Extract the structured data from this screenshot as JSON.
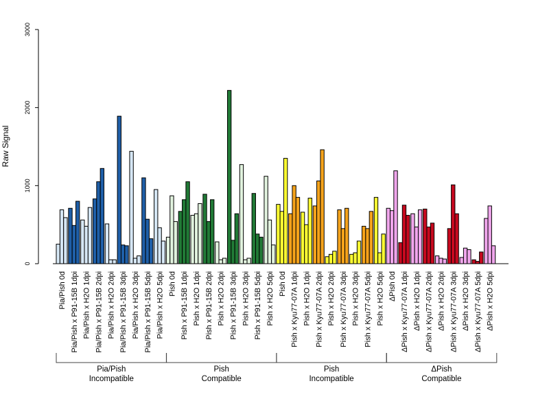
{
  "chart_data": {
    "type": "bar",
    "title": "",
    "ylabel": "Raw Signal",
    "xlabel": "",
    "ylim": [
      0,
      3000
    ],
    "yticks": [
      0,
      1000,
      2000,
      3000
    ],
    "categories": [
      "Pia/Pish 0d",
      "Pia/Pish x P91-15B 1dpi",
      "Pia/Pish x H2O 1dpi",
      "Pia/Pish x P91-15B 2dpi",
      "Pia/Pish x H2O 2dpi",
      "Pia/Pish x P91-15B 3dpi",
      "Pia/Pish x H2O 3dpi",
      "Pia/Pish x P91-15B 5dpi",
      "Pia/Pish x H2O 5dpi",
      "Pish 0d",
      "Pish x P91-15B 1dpi",
      "Pish x H2O 1dpi",
      "Pish x P91-15B 2dpi",
      "Pish x H2O 2dpi",
      "Pish x P91-15B 3dpi",
      "Pish x H2O 3dpi",
      "Pish x P91-15B 5dpi",
      "Pish x H2O 5dpi",
      "Pish 0d",
      "Pish x Kyu77-07A 1dpi",
      "Pish x H2O 1dpi",
      "Pish x Kyu77-07A 2dpi",
      "Pish x H2O 2dpi",
      "Pish x Kyu77-07A 3dpi",
      "Pish x H2O 3dpi",
      "Pish x Kyu77-07A 5dpi",
      "Pish x H2O 5dpi",
      "ΔPish 0d",
      "ΔPish x Kyu77-07A 1dpi",
      "ΔPish x H2O 1dpi",
      "ΔPish x Kyu77-07A 2dpi",
      "ΔPish x H2O 2dpi",
      "ΔPish x Kyu77-07A 3dpi",
      "ΔPish x H2O 3dpi",
      "ΔPish x Kyu77-07A 5dpi",
      "ΔPish x H2O 5dpi"
    ],
    "values": [
      [
        250,
        690,
        590
      ],
      [
        710,
        490,
        800
      ],
      [
        560,
        480,
        720
      ],
      [
        830,
        1050,
        1220
      ],
      [
        510,
        50,
        50
      ],
      [
        1890,
        240,
        230
      ],
      [
        1440,
        70,
        100
      ],
      [
        1100,
        570,
        320
      ],
      [
        950,
        460,
        290
      ],
      [
        340,
        870,
        540
      ],
      [
        670,
        820,
        1050
      ],
      [
        620,
        640,
        770
      ],
      [
        890,
        540,
        820
      ],
      [
        280,
        50,
        70
      ],
      [
        2220,
        300,
        640
      ],
      [
        1270,
        50,
        70
      ],
      [
        900,
        380,
        340
      ],
      [
        1120,
        560,
        240
      ],
      [
        760,
        670,
        1350
      ],
      [
        640,
        1000,
        850
      ],
      [
        660,
        500,
        840
      ],
      [
        740,
        1060,
        1460
      ],
      [
        90,
        120,
        160
      ],
      [
        690,
        450,
        710
      ],
      [
        120,
        140,
        290
      ],
      [
        480,
        450,
        670
      ],
      [
        850,
        140,
        380
      ],
      [
        710,
        680,
        1190
      ],
      [
        270,
        750,
        620
      ],
      [
        640,
        470,
        690
      ],
      [
        700,
        470,
        520
      ],
      [
        100,
        70,
        60
      ],
      [
        450,
        1010,
        640
      ],
      [
        80,
        200,
        180
      ],
      [
        50,
        30,
        150
      ],
      [
        580,
        740,
        230
      ]
    ],
    "colors": {
      "compatible_light": "#d6e7f5",
      "pia_pish_dark": "#1f5fa8",
      "pish_compat_light": "#e2f3df",
      "pish_compat_dark": "#217a36",
      "pish_incompat_light": "#ffff33",
      "pish_incompat_dark": "#f5a31b",
      "dpish_light": "#f0a6ec",
      "dpish_dark": "#c7091f"
    },
    "category_colors": [
      "compatible_light",
      "pia_pish_dark",
      "compatible_light",
      "pia_pish_dark",
      "compatible_light",
      "pia_pish_dark",
      "compatible_light",
      "pia_pish_dark",
      "compatible_light",
      "pish_compat_light",
      "pish_compat_dark",
      "pish_compat_light",
      "pish_compat_dark",
      "pish_compat_light",
      "pish_compat_dark",
      "pish_compat_light",
      "pish_compat_dark",
      "pish_compat_light",
      "pish_incompat_light",
      "pish_incompat_dark",
      "pish_incompat_light",
      "pish_incompat_dark",
      "pish_incompat_light",
      "pish_incompat_dark",
      "pish_incompat_light",
      "pish_incompat_dark",
      "pish_incompat_light",
      "dpish_light",
      "dpish_dark",
      "dpish_light",
      "dpish_dark",
      "dpish_light",
      "dpish_dark",
      "dpish_light",
      "dpish_dark",
      "dpish_light"
    ],
    "groups": [
      {
        "line1": "Pia/Pish",
        "line2": "Incompatible",
        "start": 0,
        "end": 8
      },
      {
        "line1": "Pish",
        "line2": "Compatible",
        "start": 9,
        "end": 17
      },
      {
        "line1": "Pish",
        "line2": "Incompatible",
        "start": 18,
        "end": 26
      },
      {
        "line1": "ΔPish",
        "line2": "Compatible",
        "start": 27,
        "end": 35
      }
    ],
    "grid": false,
    "legend": "none"
  }
}
